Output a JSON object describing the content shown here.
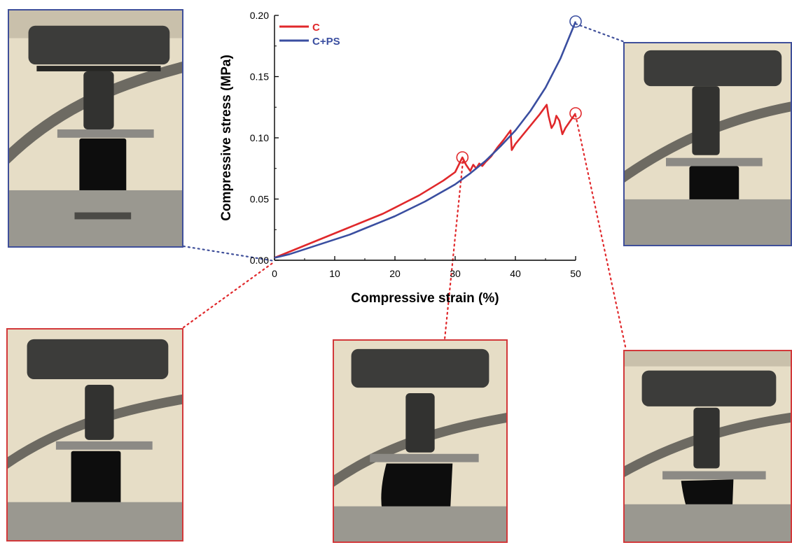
{
  "chart_data": {
    "type": "line",
    "xlabel": "Compressive strain (%)",
    "ylabel": "Compressive stress (MPa)",
    "xlim": [
      0,
      50
    ],
    "ylim": [
      0,
      0.2
    ],
    "xticks": [
      "0",
      "10",
      "20",
      "30",
      "40",
      "50"
    ],
    "yticks": [
      "0.00",
      "0.05",
      "0.10",
      "0.15",
      "0.20"
    ],
    "grid": false,
    "legend_position": "top-left",
    "series": [
      {
        "name": "C",
        "color": "#e0282b",
        "x": [
          0,
          2,
          4,
          6,
          8,
          10,
          12,
          14,
          16,
          18,
          20,
          22,
          24,
          26,
          28,
          30,
          31.2,
          31.8,
          32.5,
          33,
          33.5,
          34,
          34.5,
          35,
          36,
          37,
          38,
          39.2,
          39.4,
          40,
          41,
          42,
          43,
          44,
          45.2,
          45.5,
          46,
          46.5,
          46.8,
          47.3,
          47.8,
          48.3,
          49,
          50
        ],
        "y": [
          0.002,
          0.006,
          0.01,
          0.014,
          0.018,
          0.022,
          0.026,
          0.03,
          0.034,
          0.038,
          0.043,
          0.048,
          0.053,
          0.059,
          0.065,
          0.072,
          0.084,
          0.078,
          0.073,
          0.078,
          0.075,
          0.079,
          0.077,
          0.08,
          0.085,
          0.092,
          0.098,
          0.106,
          0.09,
          0.095,
          0.101,
          0.107,
          0.113,
          0.119,
          0.127,
          0.118,
          0.108,
          0.112,
          0.118,
          0.114,
          0.103,
          0.108,
          0.113,
          0.12
        ]
      },
      {
        "name": "C+PS",
        "color": "#3a4ea0",
        "x": [
          0,
          2.5,
          5,
          7.5,
          10,
          12.5,
          15,
          17.5,
          20,
          22.5,
          25,
          27.5,
          30,
          32.5,
          35,
          37.5,
          40,
          42.5,
          45,
          47.5,
          50
        ],
        "y": [
          0.002,
          0.005,
          0.009,
          0.013,
          0.017,
          0.021,
          0.026,
          0.031,
          0.036,
          0.042,
          0.048,
          0.055,
          0.062,
          0.071,
          0.081,
          0.093,
          0.106,
          0.122,
          0.141,
          0.165,
          0.195
        ]
      }
    ],
    "markers": [
      {
        "series": "C",
        "x": 31.2,
        "y": 0.084
      },
      {
        "series": "C",
        "x": 50,
        "y": 0.12
      },
      {
        "series": "C+PS",
        "x": 50,
        "y": 0.195
      }
    ]
  }
}
